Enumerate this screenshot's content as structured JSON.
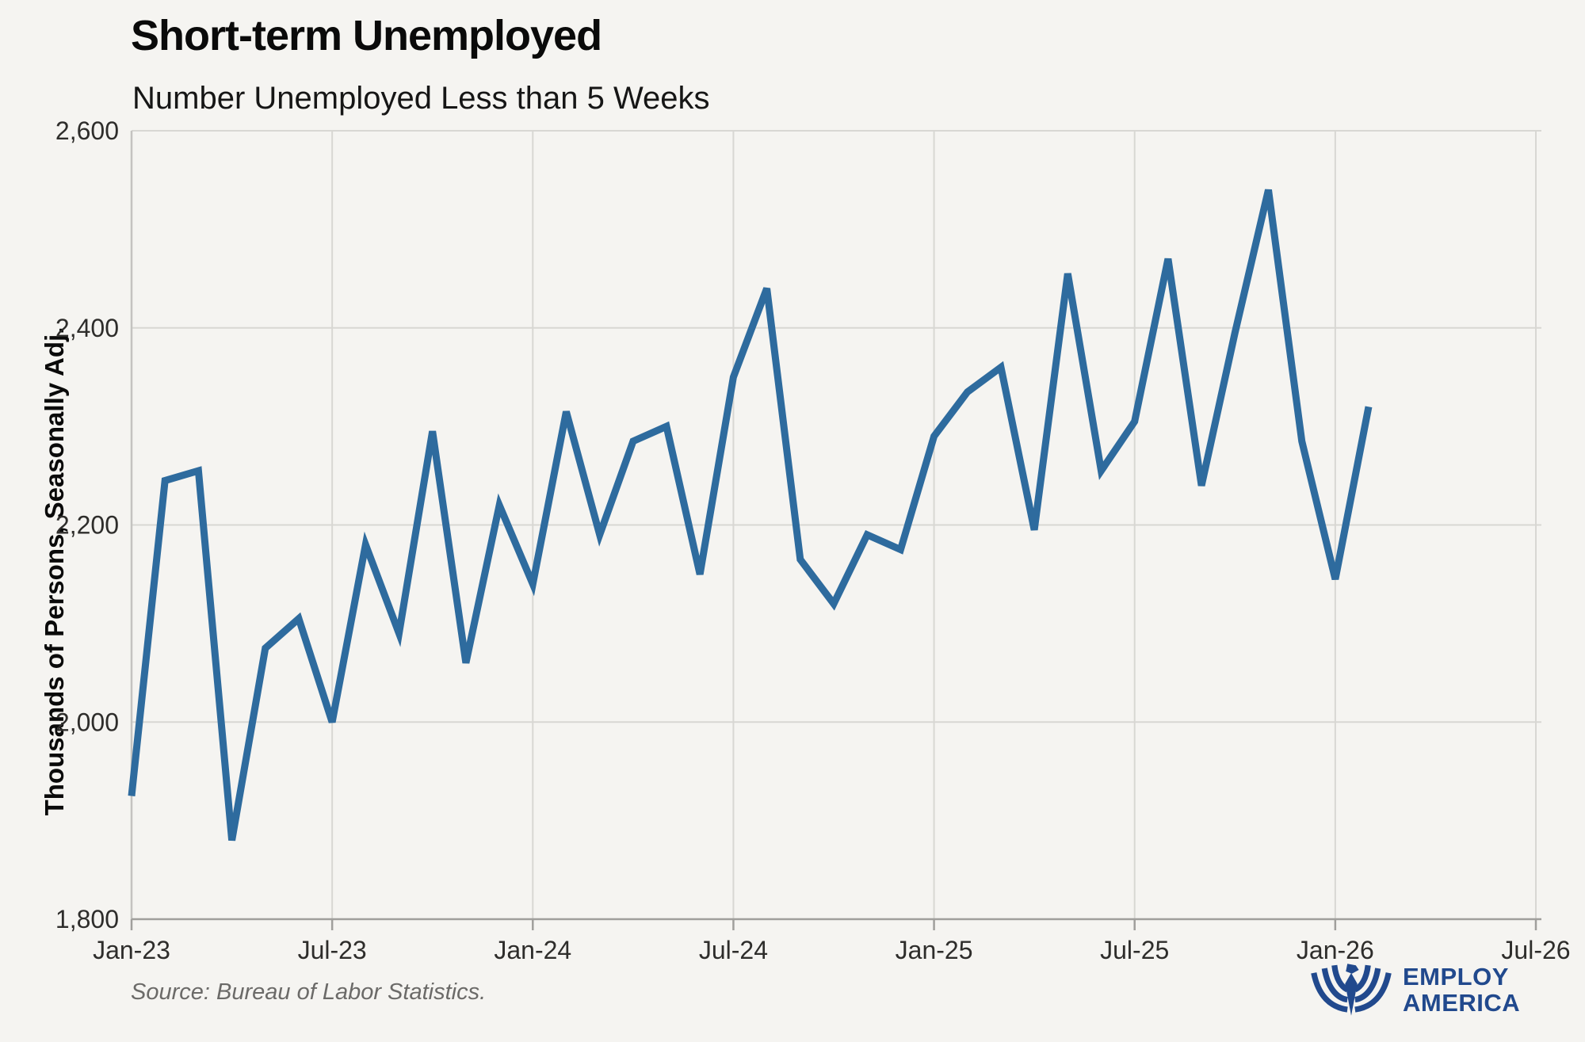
{
  "header": {
    "title": "Short-term Unemployed",
    "subtitle": "Number Unemployed Less than 5 Weeks"
  },
  "footer": {
    "source": "Source: Bureau of Labor Statistics.",
    "logo_line1": "EMPLOY",
    "logo_line2": "AMERICA"
  },
  "colors": {
    "background": "#f5f4f1",
    "line": "#2e6b9e",
    "gridline": "#d8d7d3",
    "axis": "#a09f9c",
    "tick_label": "#2e2d2b",
    "logo_blue": "#21498d"
  },
  "chart_data": {
    "type": "line",
    "title": "Short-term Unemployed",
    "subtitle": "Number Unemployed Less than 5 Weeks",
    "xlabel": "",
    "ylabel": "Thousands of Persons, Seasonally Adj.",
    "ylim": [
      1800,
      2600
    ],
    "x_months_total": 42,
    "grid": true,
    "legend": false,
    "y_ticks": [
      {
        "label": "2,600",
        "value": 2600
      },
      {
        "label": "2,400",
        "value": 2400
      },
      {
        "label": "2,200",
        "value": 2200
      },
      {
        "label": "2,000",
        "value": 2000
      },
      {
        "label": "1,800",
        "value": 1800
      }
    ],
    "x_ticks": [
      {
        "label": "Jan-23",
        "m": 0
      },
      {
        "label": "Jul-23",
        "m": 6
      },
      {
        "label": "Jan-24",
        "m": 12
      },
      {
        "label": "Jul-24",
        "m": 18
      },
      {
        "label": "Jan-25",
        "m": 24
      },
      {
        "label": "Jul-25",
        "m": 30
      },
      {
        "label": "Jan-26",
        "m": 36
      },
      {
        "label": "Jul-26",
        "m": 42
      }
    ],
    "series": [
      {
        "name": "Number Unemployed Less than 5 Weeks",
        "x": [
          "Jan-23",
          "Feb-23",
          "Mar-23",
          "Apr-23",
          "May-23",
          "Jun-23",
          "Jul-23",
          "Aug-23",
          "Sep-23",
          "Oct-23",
          "Nov-23",
          "Dec-23",
          "Jan-24",
          "Feb-24",
          "Mar-24",
          "Apr-24",
          "May-24",
          "Jun-24",
          "Jul-24",
          "Aug-24",
          "Sep-24",
          "Oct-24",
          "Nov-24",
          "Dec-24",
          "Jan-25",
          "Feb-25",
          "Mar-25",
          "Apr-25",
          "May-25",
          "Jun-25",
          "Jul-25",
          "Aug-25",
          "Sep-25",
          "Oct-25",
          "Nov-25",
          "Dec-25",
          "Jan-26",
          "Feb-26"
        ],
        "values": [
          1925,
          2245,
          2255,
          1880,
          2075,
          2105,
          2000,
          2180,
          2090,
          2295,
          2060,
          2220,
          2140,
          2315,
          2190,
          2285,
          2300,
          2150,
          2350,
          2440,
          2165,
          2120,
          2190,
          2175,
          2290,
          2335,
          2360,
          2195,
          2455,
          2255,
          2305,
          2470,
          2240,
          2395,
          2540,
          2285,
          2145,
          2320
        ]
      }
    ]
  }
}
